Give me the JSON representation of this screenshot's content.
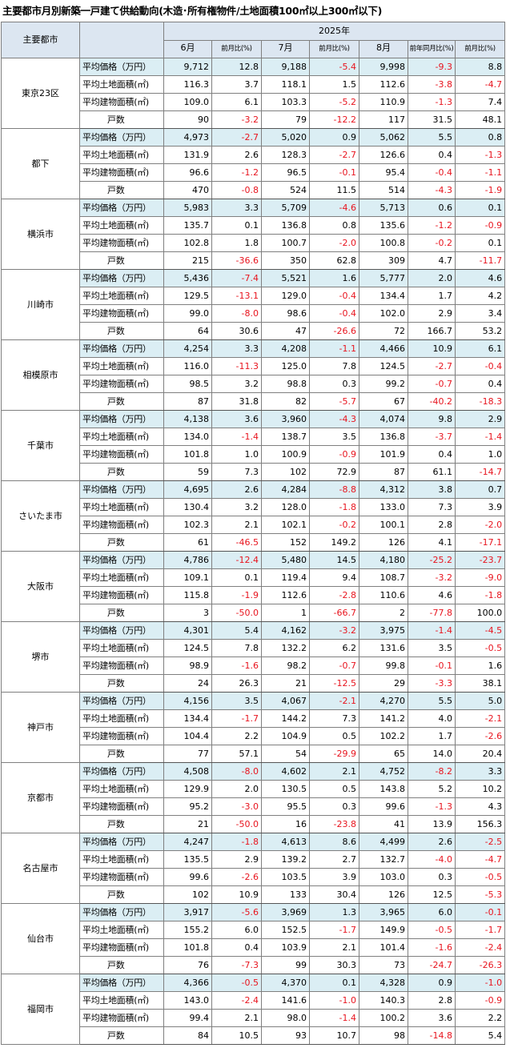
{
  "title": "主要都市月別新築一戸建て供給動向(木造･所有権物件/土地面積100㎡以上300㎡以下)",
  "header": {
    "city_col": "主要都市",
    "year": "2025年",
    "months": [
      "6月",
      "7月",
      "8月"
    ],
    "mom": "前月比(%)",
    "yoy": "前年同月比(%)"
  },
  "metrics": [
    "平均価格（万円）",
    "平均土地面積(㎡)",
    "平均建物面積(㎡)",
    "戸数"
  ],
  "cities": [
    {
      "name": "東京23区",
      "rows": [
        [
          "9,712",
          "12.8",
          "9,188",
          "-5.4",
          "9,998",
          "-9.3",
          "8.8"
        ],
        [
          "116.3",
          "3.7",
          "118.1",
          "1.5",
          "112.6",
          "-3.8",
          "-4.7"
        ],
        [
          "109.0",
          "6.1",
          "103.3",
          "-5.2",
          "110.9",
          "-1.3",
          "7.4"
        ],
        [
          "90",
          "-3.2",
          "79",
          "-12.2",
          "117",
          "31.5",
          "48.1"
        ]
      ]
    },
    {
      "name": "都下",
      "rows": [
        [
          "4,973",
          "-2.7",
          "5,020",
          "0.9",
          "5,062",
          "5.5",
          "0.8"
        ],
        [
          "131.9",
          "2.6",
          "128.3",
          "-2.7",
          "126.6",
          "0.4",
          "-1.3"
        ],
        [
          "96.6",
          "-1.2",
          "96.5",
          "-0.1",
          "95.4",
          "-0.4",
          "-1.1"
        ],
        [
          "470",
          "-0.8",
          "524",
          "11.5",
          "514",
          "-4.3",
          "-1.9"
        ]
      ]
    },
    {
      "name": "横浜市",
      "rows": [
        [
          "5,983",
          "3.3",
          "5,709",
          "-4.6",
          "5,713",
          "0.6",
          "0.1"
        ],
        [
          "135.7",
          "0.1",
          "136.8",
          "0.8",
          "135.6",
          "-1.2",
          "-0.9"
        ],
        [
          "102.8",
          "1.8",
          "100.7",
          "-2.0",
          "100.8",
          "-0.2",
          "0.1"
        ],
        [
          "215",
          "-36.6",
          "350",
          "62.8",
          "309",
          "4.7",
          "-11.7"
        ]
      ]
    },
    {
      "name": "川崎市",
      "rows": [
        [
          "5,436",
          "-7.4",
          "5,521",
          "1.6",
          "5,777",
          "2.0",
          "4.6"
        ],
        [
          "129.5",
          "-13.1",
          "129.0",
          "-0.4",
          "134.4",
          "1.7",
          "4.2"
        ],
        [
          "99.0",
          "-8.0",
          "98.6",
          "-0.4",
          "102.0",
          "2.9",
          "3.4"
        ],
        [
          "64",
          "30.6",
          "47",
          "-26.6",
          "72",
          "166.7",
          "53.2"
        ]
      ]
    },
    {
      "name": "相模原市",
      "rows": [
        [
          "4,254",
          "3.3",
          "4,208",
          "-1.1",
          "4,466",
          "10.9",
          "6.1"
        ],
        [
          "116.0",
          "-11.3",
          "125.0",
          "7.8",
          "124.5",
          "-2.7",
          "-0.4"
        ],
        [
          "98.5",
          "3.2",
          "98.8",
          "0.3",
          "99.2",
          "-0.7",
          "0.4"
        ],
        [
          "87",
          "31.8",
          "82",
          "-5.7",
          "67",
          "-40.2",
          "-18.3"
        ]
      ]
    },
    {
      "name": "千葉市",
      "rows": [
        [
          "4,138",
          "3.6",
          "3,960",
          "-4.3",
          "4,074",
          "9.8",
          "2.9"
        ],
        [
          "134.0",
          "-1.4",
          "138.7",
          "3.5",
          "136.8",
          "-3.7",
          "-1.4"
        ],
        [
          "101.8",
          "1.0",
          "100.9",
          "-0.9",
          "101.9",
          "0.4",
          "1.0"
        ],
        [
          "59",
          "7.3",
          "102",
          "72.9",
          "87",
          "61.1",
          "-14.7"
        ]
      ]
    },
    {
      "name": "さいたま市",
      "rows": [
        [
          "4,695",
          "2.6",
          "4,284",
          "-8.8",
          "4,312",
          "3.8",
          "0.7"
        ],
        [
          "130.4",
          "3.2",
          "128.0",
          "-1.8",
          "133.0",
          "7.3",
          "3.9"
        ],
        [
          "102.3",
          "2.1",
          "102.1",
          "-0.2",
          "100.1",
          "2.8",
          "-2.0"
        ],
        [
          "61",
          "-46.5",
          "152",
          "149.2",
          "126",
          "4.1",
          "-17.1"
        ]
      ]
    },
    {
      "name": "大阪市",
      "rows": [
        [
          "4,786",
          "-12.4",
          "5,480",
          "14.5",
          "4,180",
          "-25.2",
          "-23.7"
        ],
        [
          "109.1",
          "0.1",
          "119.4",
          "9.4",
          "108.7",
          "-3.2",
          "-9.0"
        ],
        [
          "115.8",
          "-1.9",
          "112.6",
          "-2.8",
          "110.6",
          "4.6",
          "-1.8"
        ],
        [
          "3",
          "-50.0",
          "1",
          "-66.7",
          "2",
          "-77.8",
          "100.0"
        ]
      ]
    },
    {
      "name": "堺市",
      "rows": [
        [
          "4,301",
          "5.4",
          "4,162",
          "-3.2",
          "3,975",
          "-1.4",
          "-4.5"
        ],
        [
          "124.5",
          "7.8",
          "132.2",
          "6.2",
          "131.6",
          "3.5",
          "-0.5"
        ],
        [
          "98.9",
          "-1.6",
          "98.2",
          "-0.7",
          "99.8",
          "-0.1",
          "1.6"
        ],
        [
          "24",
          "26.3",
          "21",
          "-12.5",
          "29",
          "-3.3",
          "38.1"
        ]
      ]
    },
    {
      "name": "神戸市",
      "rows": [
        [
          "4,156",
          "3.5",
          "4,067",
          "-2.1",
          "4,270",
          "5.5",
          "5.0"
        ],
        [
          "134.4",
          "-1.7",
          "144.2",
          "7.3",
          "141.2",
          "4.0",
          "-2.1"
        ],
        [
          "104.4",
          "2.2",
          "104.9",
          "0.5",
          "102.2",
          "1.7",
          "-2.6"
        ],
        [
          "77",
          "57.1",
          "54",
          "-29.9",
          "65",
          "14.0",
          "20.4"
        ]
      ]
    },
    {
      "name": "京都市",
      "rows": [
        [
          "4,508",
          "-8.0",
          "4,602",
          "2.1",
          "4,752",
          "-8.2",
          "3.3"
        ],
        [
          "129.9",
          "2.0",
          "130.5",
          "0.5",
          "143.8",
          "5.2",
          "10.2"
        ],
        [
          "95.2",
          "-3.0",
          "95.5",
          "0.3",
          "99.6",
          "-1.3",
          "4.3"
        ],
        [
          "21",
          "-50.0",
          "16",
          "-23.8",
          "41",
          "13.9",
          "156.3"
        ]
      ]
    },
    {
      "name": "名古屋市",
      "rows": [
        [
          "4,247",
          "-1.8",
          "4,613",
          "8.6",
          "4,499",
          "2.6",
          "-2.5"
        ],
        [
          "135.5",
          "2.9",
          "139.2",
          "2.7",
          "132.7",
          "-4.0",
          "-4.7"
        ],
        [
          "99.6",
          "-2.6",
          "103.5",
          "3.9",
          "103.0",
          "0.3",
          "-0.5"
        ],
        [
          "102",
          "10.9",
          "133",
          "30.4",
          "126",
          "12.5",
          "-5.3"
        ]
      ]
    },
    {
      "name": "仙台市",
      "rows": [
        [
          "3,917",
          "-5.6",
          "3,969",
          "1.3",
          "3,965",
          "6.0",
          "-0.1"
        ],
        [
          "155.2",
          "6.0",
          "152.5",
          "-1.7",
          "149.9",
          "-0.5",
          "-1.7"
        ],
        [
          "101.8",
          "0.4",
          "103.9",
          "2.1",
          "101.4",
          "-1.6",
          "-2.4"
        ],
        [
          "76",
          "-7.3",
          "99",
          "30.3",
          "73",
          "-24.7",
          "-26.3"
        ]
      ]
    },
    {
      "name": "福岡市",
      "rows": [
        [
          "4,366",
          "-0.5",
          "4,370",
          "0.1",
          "4,328",
          "0.9",
          "-1.0"
        ],
        [
          "143.0",
          "-2.4",
          "141.6",
          "-1.0",
          "140.3",
          "2.8",
          "-0.9"
        ],
        [
          "99.4",
          "2.1",
          "98.0",
          "-1.4",
          "100.2",
          "3.6",
          "2.2"
        ],
        [
          "84",
          "10.5",
          "93",
          "10.7",
          "98",
          "-14.8",
          "5.4"
        ]
      ]
    }
  ]
}
